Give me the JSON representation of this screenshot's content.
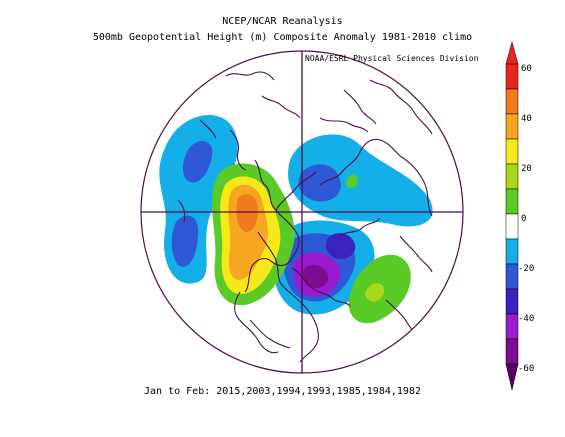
{
  "header": {
    "title_line1": "NCEP/NCAR Reanalysis",
    "title_line2": "500mb Geopotential Height (m) Composite Anomaly 1981-2010 climo",
    "credit": "NOAA/ESRL Physical Sciences Division"
  },
  "footer": {
    "period": "Jan to Feb: 2015,2003,1994,1993,1985,1984,1982"
  },
  "colorbar": {
    "labels": [
      "60",
      "40",
      "20",
      "0",
      "-20",
      "-40",
      "-60"
    ],
    "colors": {
      "red": "#e8251e",
      "orange_red": "#f07a1e",
      "orange": "#f7a621",
      "yellow": "#f7e81a",
      "yellow_green": "#a8d81c",
      "green": "#5acb26",
      "white": "#ffffff",
      "cyan": "#14aee8",
      "blue": "#2e59d6",
      "indigo": "#3a22c0",
      "purple": "#9a1ad0",
      "violet_dark": "#7d0d8f",
      "dark_purple": "#560066"
    }
  },
  "map": {
    "projection": "north-polar-stereographic",
    "coastline_color": "#4a0f4a"
  }
}
